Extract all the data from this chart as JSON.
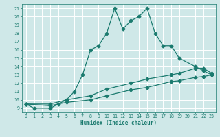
{
  "xlabel": "Humidex (Indice chaleur)",
  "bg_color": "#cfe8e8",
  "grid_color": "#ffffff",
  "line_color": "#1a7a6e",
  "xlim": [
    -0.5,
    23.5
  ],
  "ylim": [
    8.5,
    21.5
  ],
  "xticks": [
    0,
    1,
    2,
    3,
    4,
    5,
    6,
    7,
    8,
    9,
    10,
    11,
    12,
    13,
    14,
    15,
    16,
    17,
    18,
    19,
    20,
    21,
    22,
    23
  ],
  "yticks": [
    9,
    10,
    11,
    12,
    13,
    14,
    15,
    16,
    17,
    18,
    19,
    20,
    21
  ],
  "main_x": [
    0,
    1,
    3,
    4,
    5,
    6,
    7,
    8,
    9,
    10,
    11,
    12,
    13,
    14,
    15,
    16,
    17,
    18,
    19,
    21,
    22,
    23
  ],
  "main_y": [
    9.5,
    9.0,
    9.0,
    9.5,
    10.0,
    11.0,
    13.0,
    16.0,
    16.5,
    18.0,
    21.0,
    18.5,
    19.5,
    20.0,
    21.0,
    18.0,
    16.5,
    16.5,
    15.0,
    14.0,
    13.5,
    13.0
  ],
  "upper_x": [
    0,
    3,
    5,
    8,
    10,
    13,
    15,
    18,
    19,
    21,
    22,
    23
  ],
  "upper_y": [
    9.5,
    9.5,
    10.0,
    10.5,
    11.3,
    12.0,
    12.5,
    13.0,
    13.2,
    13.8,
    13.8,
    13.2
  ],
  "lower_x": [
    0,
    3,
    5,
    8,
    10,
    13,
    15,
    18,
    19,
    21,
    22,
    23
  ],
  "lower_y": [
    9.5,
    9.3,
    9.7,
    10.0,
    10.5,
    11.2,
    11.5,
    12.2,
    12.3,
    12.7,
    12.8,
    13.0
  ],
  "markersize": 2.5,
  "linewidth": 0.9
}
